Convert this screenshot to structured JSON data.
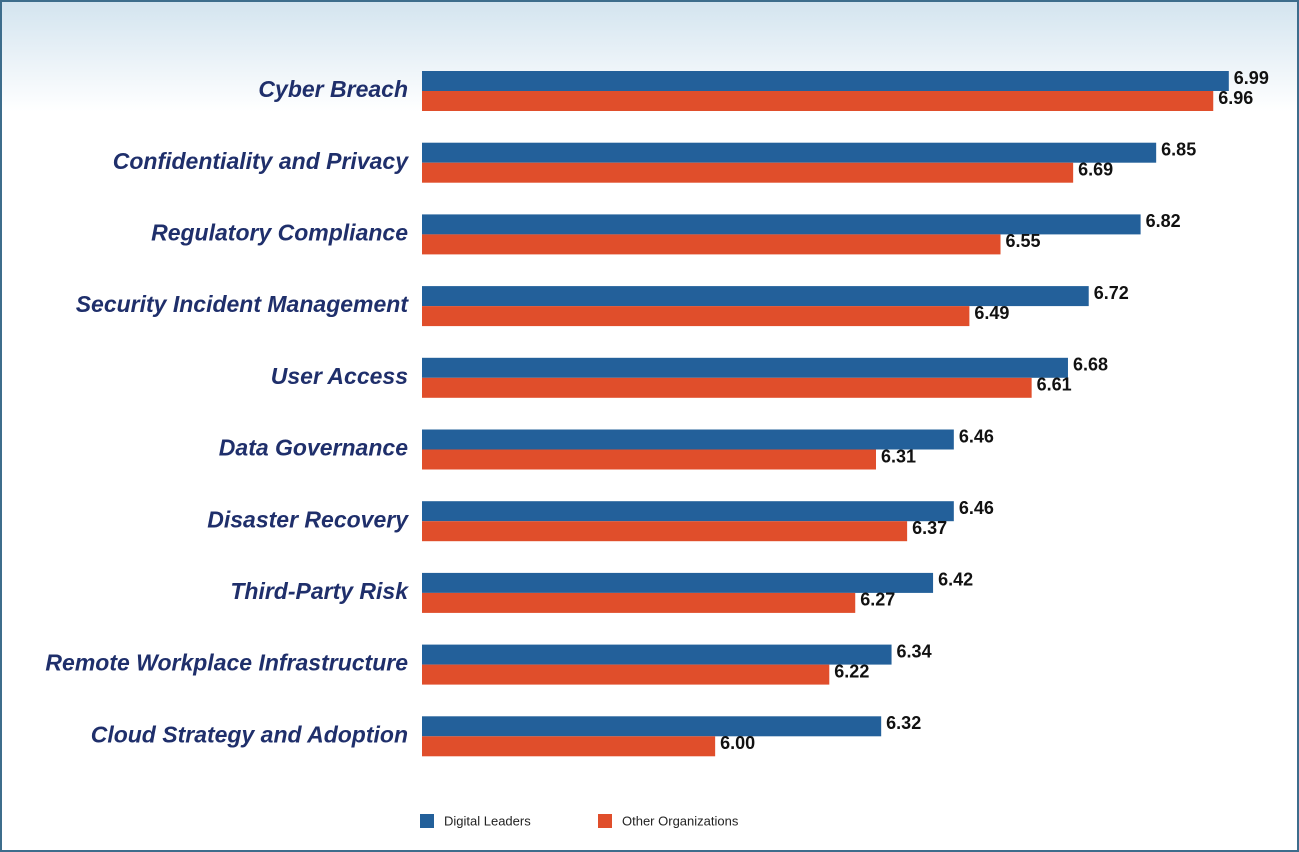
{
  "chart_data": {
    "type": "barh",
    "categories": [
      "Cyber Breach",
      "Confidentiality and Privacy",
      "Regulatory Compliance",
      "Security Incident Management",
      "User Access",
      "Data Governance",
      "Disaster Recovery",
      "Third-Party Risk",
      "Remote Workplace Infrastructure",
      "Cloud Strategy and Adoption"
    ],
    "series": [
      {
        "name": "Digital Leaders",
        "color": "#23609a",
        "values": [
          6.99,
          6.85,
          6.82,
          6.72,
          6.68,
          6.46,
          6.46,
          6.42,
          6.34,
          6.32
        ],
        "value_labels": [
          "6.99",
          "6.85",
          "6.82",
          "6.72",
          "6.68",
          "6.46",
          "6.46",
          "6.42",
          "6.34",
          "6.32"
        ]
      },
      {
        "name": "Other Organizations",
        "color": "#e04e2b",
        "values": [
          6.96,
          6.69,
          6.55,
          6.49,
          6.61,
          6.31,
          6.37,
          6.27,
          6.22,
          6.0
        ],
        "value_labels": [
          "6.96",
          "6.69",
          "6.55",
          "6.49",
          "6.61",
          "6.31",
          "6.37",
          "6.27",
          "6.22",
          "6.00"
        ]
      }
    ],
    "xlim": [
      5.435,
      7.0
    ],
    "legend": "bottom"
  }
}
